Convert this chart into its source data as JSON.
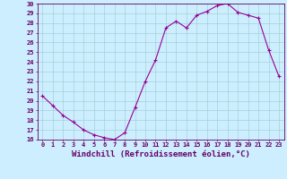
{
  "hours": [
    0,
    1,
    2,
    3,
    4,
    5,
    6,
    7,
    8,
    9,
    10,
    11,
    12,
    13,
    14,
    15,
    16,
    17,
    18,
    19,
    20,
    21,
    22,
    23
  ],
  "values": [
    20.5,
    19.5,
    18.5,
    17.8,
    17.0,
    16.5,
    16.2,
    16.0,
    16.7,
    19.3,
    22.0,
    24.2,
    27.5,
    28.2,
    27.5,
    28.8,
    29.2,
    29.8,
    30.0,
    29.1,
    28.8,
    28.5,
    25.2,
    22.5
  ],
  "line_color": "#990099",
  "marker": "+",
  "marker_size": 3,
  "marker_linewidth": 0.8,
  "bg_color": "#cceeff",
  "grid_color": "#99cccc",
  "xlabel": "Windchill (Refroidissement éolien,°C)",
  "xlabel_fontsize": 6.5,
  "ylim": [
    16,
    30
  ],
  "yticks": [
    16,
    17,
    18,
    19,
    20,
    21,
    22,
    23,
    24,
    25,
    26,
    27,
    28,
    29,
    30
  ],
  "xticks": [
    0,
    1,
    2,
    3,
    4,
    5,
    6,
    7,
    8,
    9,
    10,
    11,
    12,
    13,
    14,
    15,
    16,
    17,
    18,
    19,
    20,
    21,
    22,
    23
  ],
  "tick_fontsize": 5,
  "axis_color": "#660066",
  "line_width": 0.8
}
